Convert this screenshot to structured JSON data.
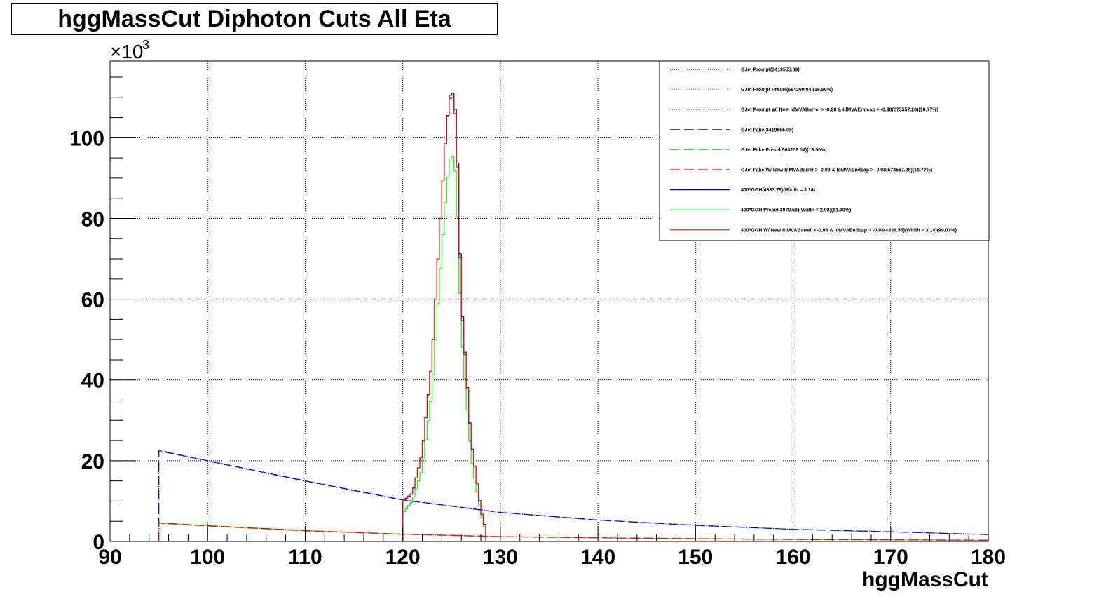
{
  "chart_data": {
    "type": "line",
    "title": "hggMassCut Diphoton Cuts All Eta",
    "xlabel": "hggMassCut",
    "ylabel": "",
    "y_multiplier_label": "×10",
    "y_multiplier_exp": "3",
    "xlim": [
      90,
      180
    ],
    "ylim": [
      0,
      119
    ],
    "grid": true,
    "legend_position": "top-right",
    "x_ticks": [
      "90",
      "100",
      "110",
      "120",
      "130",
      "140",
      "150",
      "160",
      "170",
      "180"
    ],
    "y_ticks": [
      "0",
      "20",
      "40",
      "60",
      "80",
      "100"
    ],
    "series": [
      {
        "name": "GJet Prompt(3419555.09)",
        "color": "#0000ff",
        "style": "dotted",
        "x": [
          95,
          100,
          110,
          120,
          130,
          140,
          150,
          160,
          170,
          180
        ],
        "values": [
          22.5,
          20,
          15,
          10.3,
          7.2,
          5.3,
          4.0,
          3.0,
          2.4,
          1.7
        ]
      },
      {
        "name": "GJet Prompt Presel(564209.04)(16.50%)",
        "color": "#00ff00",
        "style": "dotted",
        "x": [
          95,
          100,
          110,
          120,
          130,
          140,
          150,
          160,
          170,
          180
        ],
        "values": [
          4.5,
          3.8,
          2.6,
          1.8,
          1.2,
          0.9,
          0.7,
          0.5,
          0.4,
          0.3
        ]
      },
      {
        "name": "GJet Prompt W/ New IdMVABarrel > -0.98 & IdMVAEndcap > -0.98(573557.28)(16.77%)",
        "color": "#ff0000",
        "style": "dotted",
        "x": [
          95,
          100,
          110,
          120,
          130,
          140,
          150,
          160,
          170,
          180
        ],
        "values": [
          4.6,
          3.9,
          2.7,
          1.8,
          1.2,
          0.9,
          0.7,
          0.5,
          0.4,
          0.3
        ]
      },
      {
        "name": "GJet Fake(3419555.09)",
        "color": "#0000ff",
        "style": "dashed",
        "x": [
          95,
          100,
          110,
          120,
          130,
          140,
          150,
          160,
          170,
          180
        ],
        "values": [
          22.5,
          20,
          15,
          10.3,
          7.2,
          5.3,
          4.0,
          3.0,
          2.4,
          1.7
        ]
      },
      {
        "name": "GJet Fake Presel(564209.04)(16.50%)",
        "color": "#00ff00",
        "style": "dashed",
        "x": [
          95,
          100,
          110,
          120,
          130,
          140,
          150,
          160,
          170,
          180
        ],
        "values": [
          4.5,
          3.8,
          2.6,
          1.8,
          1.2,
          0.9,
          0.7,
          0.5,
          0.4,
          0.3
        ]
      },
      {
        "name": "GJet Fake W/ New IdMVABarrel > -0.98 & IdMVAEndcap > -0.98(573557.28)(16.77%)",
        "color": "#ff0000",
        "style": "dashed",
        "x": [
          95,
          100,
          110,
          120,
          130,
          140,
          150,
          160,
          170,
          180
        ],
        "values": [
          4.6,
          3.9,
          2.7,
          1.8,
          1.2,
          0.9,
          0.7,
          0.5,
          0.4,
          0.3
        ]
      },
      {
        "name": "400*GGH(4883.79)(Width = 3.14)",
        "color": "#000080",
        "style": "solid",
        "x": [
          120,
          121,
          122,
          123,
          124,
          124.5,
          125,
          125.5,
          126,
          127,
          128,
          128.5
        ],
        "values": [
          10,
          12,
          22,
          45,
          85,
          103,
          113,
          105,
          60,
          25,
          8,
          3
        ]
      },
      {
        "name": "400*GGH Presel(3970.56)(Width = 2.98)(81.30%)",
        "color": "#00ff00",
        "style": "solid",
        "x": [
          120,
          121,
          122,
          123,
          124,
          124.5,
          125,
          125.5,
          126,
          127,
          128,
          128.5
        ],
        "values": [
          7,
          10,
          18,
          37,
          72,
          88,
          97,
          90,
          52,
          21,
          7,
          2.5
        ]
      },
      {
        "name": "400*GGH W/ New IdMVABarrel > -0.98 & IdMVAEndcap > -0.98(4838.58)(Width = 3.14)(99.07%)",
        "color": "#ff0000",
        "style": "solid",
        "x": [
          120,
          121,
          122,
          123,
          124,
          124.5,
          125,
          125.5,
          126,
          127,
          128,
          128.5
        ],
        "values": [
          10,
          12,
          22,
          45,
          85,
          103,
          112,
          104,
          59,
          25,
          8,
          3
        ]
      }
    ]
  }
}
